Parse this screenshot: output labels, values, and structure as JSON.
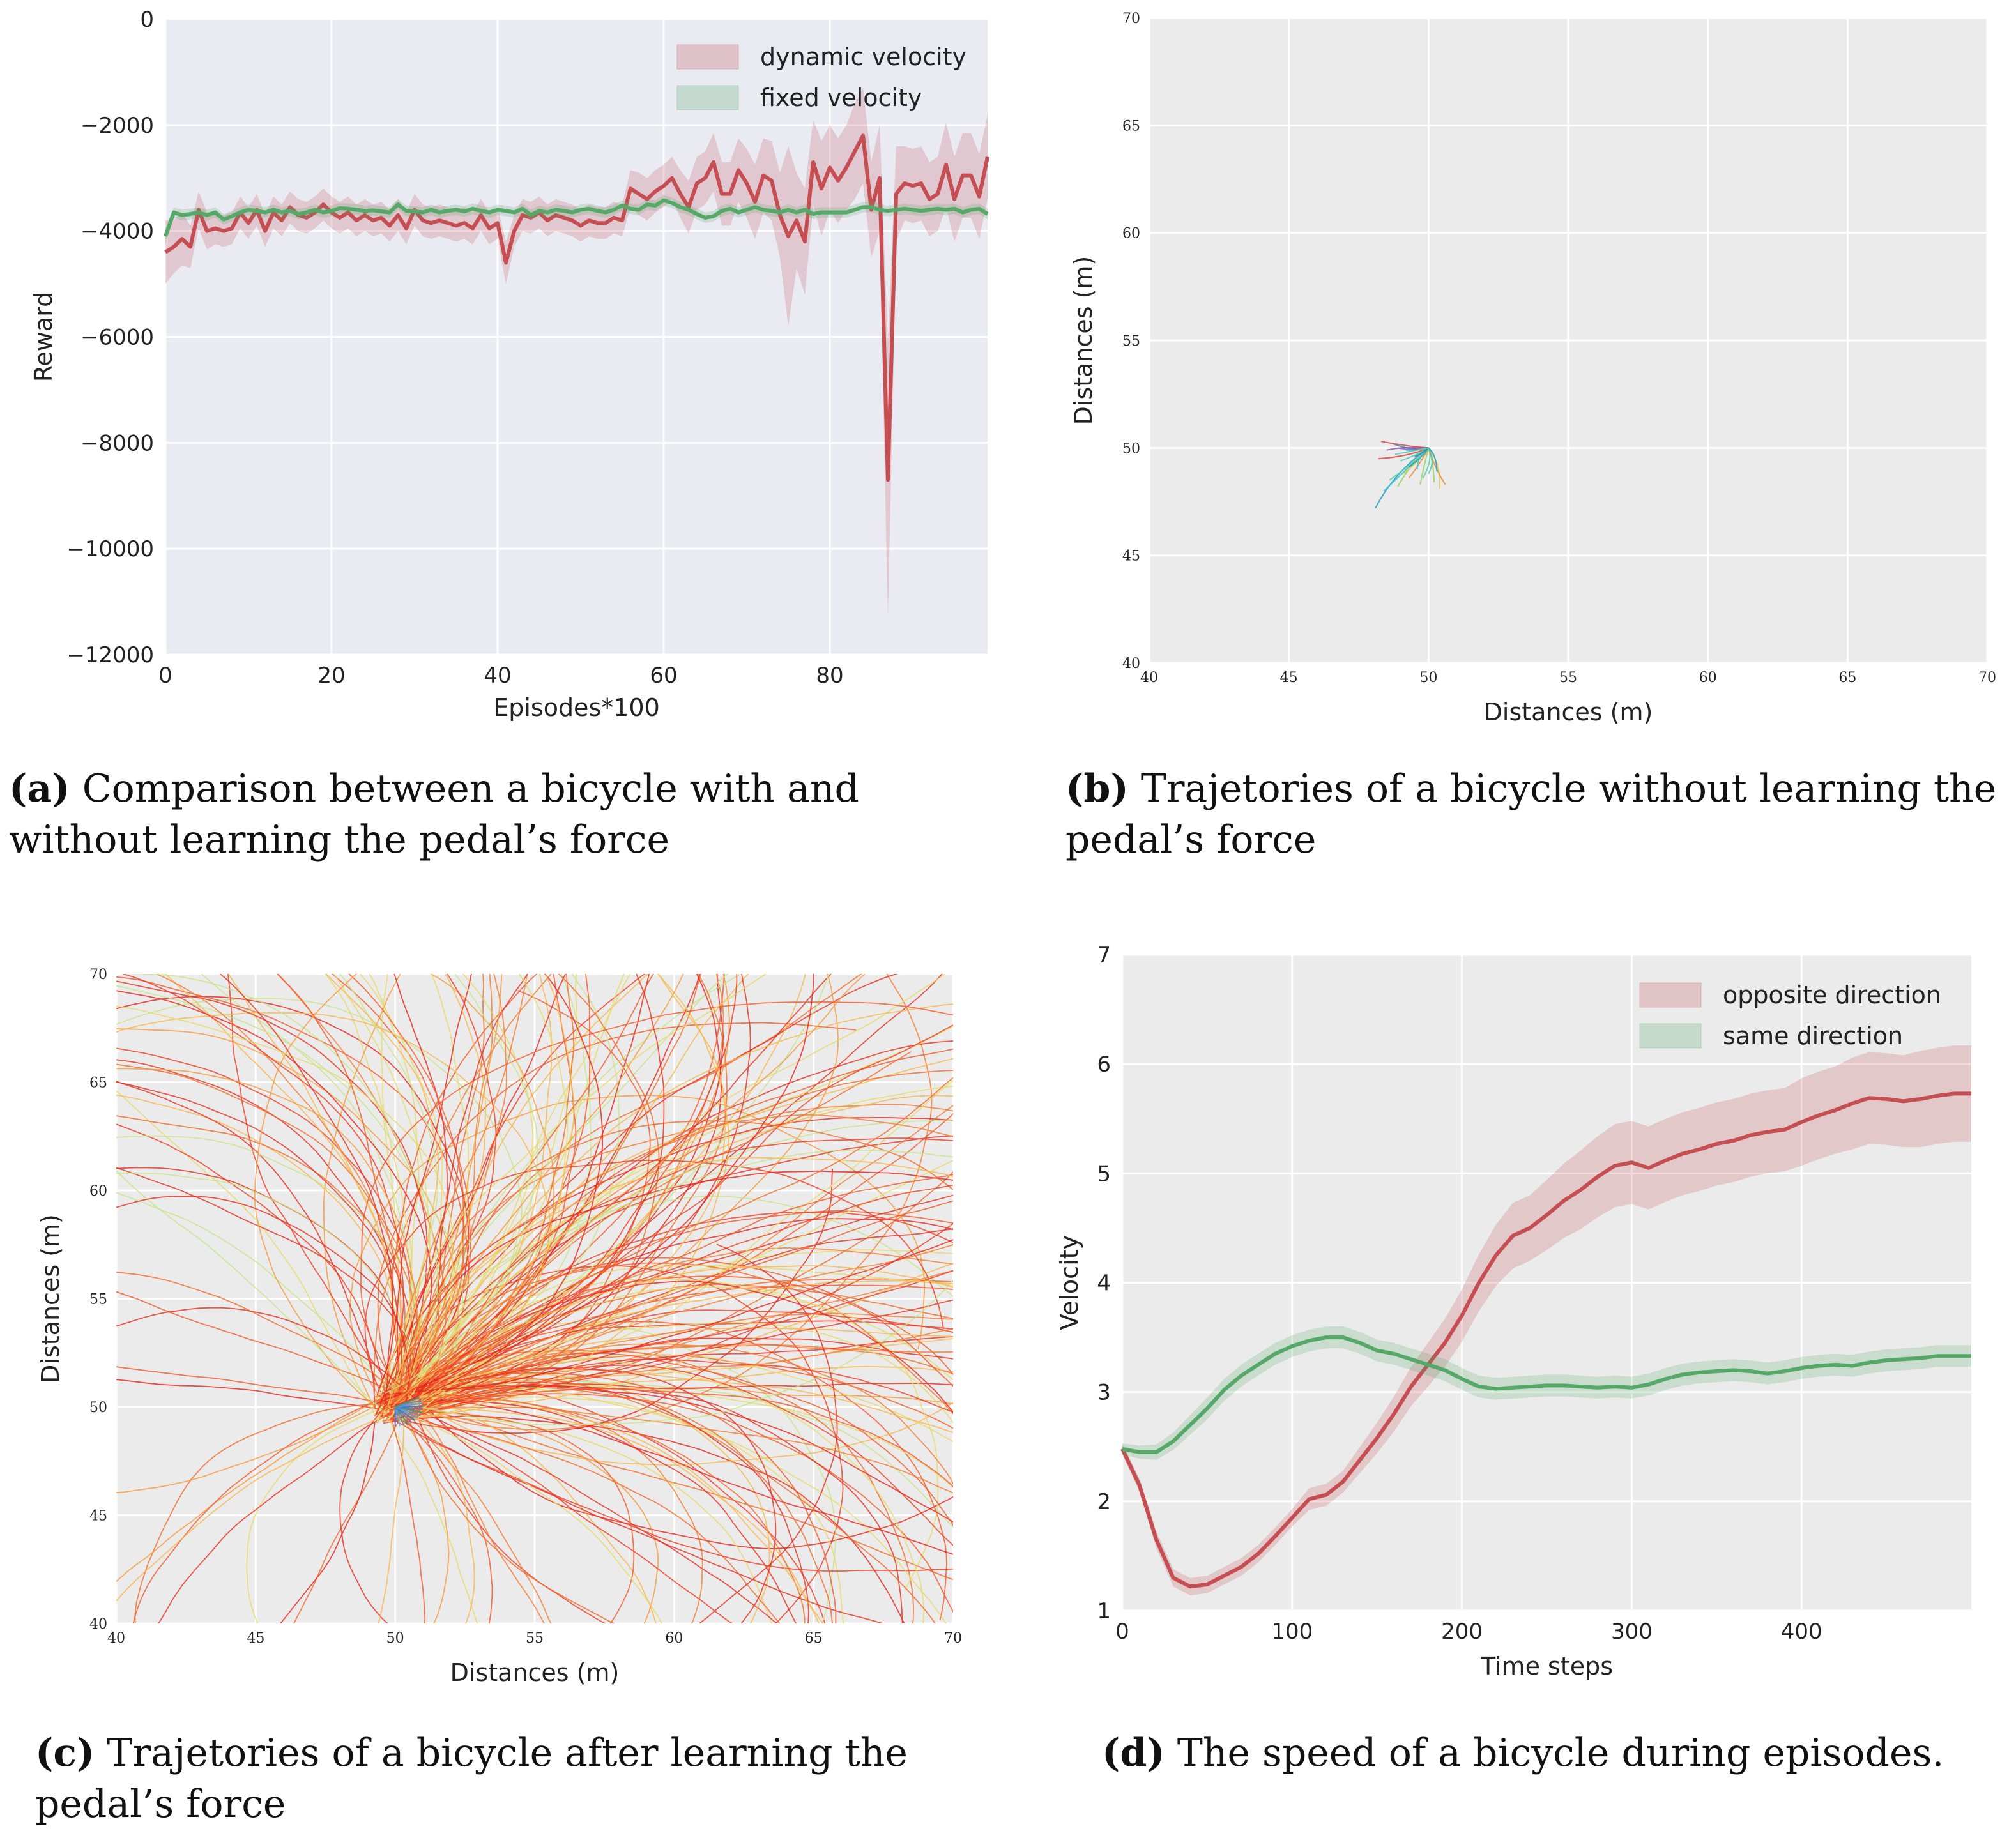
{
  "colors": {
    "red": "#c44e52",
    "green": "#55a868",
    "bg_a": "#eaeaf2",
    "bg_other": "#ebebeb",
    "grid": "#ffffff"
  },
  "captions": [
    {
      "tag": "(a)",
      "text": "Comparison between a bicycle with and without learning the pedal’s force"
    },
    {
      "tag": "(b)",
      "text": "Trajetories of a bicycle without learning the pedal’s force"
    },
    {
      "tag": "(c)",
      "text": "Trajetories of a bicycle after learning the pedal’s force"
    },
    {
      "tag": "(d)",
      "text": "The speed of a bicycle during episodes."
    }
  ],
  "chart_data": [
    {
      "id": "a",
      "type": "line",
      "title": "",
      "xlabel": "Episodes*100",
      "ylabel": "Reward",
      "xlim": [
        0,
        99
      ],
      "ylim": [
        -12000,
        0
      ],
      "xticks": [
        0,
        20,
        40,
        60,
        80
      ],
      "yticks": [
        0,
        -2000,
        -4000,
        -6000,
        -8000,
        -10000,
        -12000
      ],
      "ytick_labels": [
        "0",
        "−2000",
        "−4000",
        "−6000",
        "−8000",
        "−10000",
        "−12000"
      ],
      "legend": [
        "dynamic velocity",
        "fixed velocity"
      ],
      "legend_position": "top-right",
      "series": [
        {
          "name": "dynamic velocity",
          "color": "red",
          "values": [
            -4400,
            -4300,
            -4150,
            -4300,
            -3600,
            -4000,
            -3950,
            -4000,
            -3950,
            -3650,
            -3850,
            -3600,
            -4000,
            -3650,
            -3800,
            -3550,
            -3700,
            -3750,
            -3650,
            -3500,
            -3650,
            -3750,
            -3650,
            -3800,
            -3700,
            -3800,
            -3750,
            -3900,
            -3700,
            -3950,
            -3600,
            -3800,
            -3850,
            -3800,
            -3850,
            -3900,
            -3850,
            -3950,
            -3700,
            -3950,
            -3850,
            -4600,
            -4000,
            -3700,
            -3750,
            -3650,
            -3800,
            -3700,
            -3750,
            -3800,
            -3900,
            -3800,
            -3850,
            -3850,
            -3750,
            -3800,
            -3200,
            -3300,
            -3400,
            -3250,
            -3150,
            -3000,
            -3300,
            -3550,
            -3100,
            -3000,
            -2700,
            -3300,
            -3300,
            -2850,
            -3100,
            -3450,
            -2950,
            -3050,
            -3700,
            -4100,
            -3800,
            -4200,
            -2700,
            -3200,
            -2800,
            -3050,
            -2800,
            -2500,
            -2200,
            -3600,
            -3000,
            -8700,
            -3300,
            -3100,
            -3150,
            -3100,
            -3400,
            -3300,
            -2750,
            -3400,
            -2950,
            -2950,
            -3350,
            -2600
          ],
          "band": [
            600,
            500,
            500,
            400,
            350,
            350,
            300,
            300,
            300,
            300,
            300,
            300,
            300,
            300,
            300,
            300,
            300,
            300,
            300,
            300,
            300,
            300,
            300,
            300,
            300,
            300,
            300,
            300,
            300,
            300,
            300,
            300,
            300,
            300,
            300,
            300,
            300,
            300,
            300,
            300,
            300,
            400,
            300,
            300,
            300,
            300,
            300,
            300,
            300,
            300,
            300,
            300,
            300,
            300,
            300,
            300,
            350,
            400,
            400,
            400,
            400,
            400,
            450,
            500,
            500,
            500,
            550,
            600,
            600,
            600,
            650,
            700,
            700,
            750,
            800,
            1700,
            900,
            1000,
            800,
            900,
            800,
            800,
            800,
            900,
            900,
            900,
            1000,
            2600,
            900,
            700,
            700,
            700,
            700,
            700,
            800,
            800,
            800,
            800,
            800,
            800
          ]
        },
        {
          "name": "fixed velocity",
          "color": "green",
          "values": [
            -4100,
            -3650,
            -3700,
            -3680,
            -3650,
            -3700,
            -3650,
            -3780,
            -3720,
            -3650,
            -3600,
            -3620,
            -3650,
            -3600,
            -3650,
            -3620,
            -3680,
            -3650,
            -3600,
            -3650,
            -3620,
            -3570,
            -3580,
            -3600,
            -3620,
            -3610,
            -3630,
            -3650,
            -3500,
            -3620,
            -3630,
            -3650,
            -3600,
            -3650,
            -3620,
            -3600,
            -3630,
            -3580,
            -3620,
            -3650,
            -3600,
            -3620,
            -3650,
            -3580,
            -3700,
            -3620,
            -3650,
            -3600,
            -3620,
            -3650,
            -3600,
            -3580,
            -3620,
            -3650,
            -3600,
            -3520,
            -3580,
            -3600,
            -3500,
            -3520,
            -3420,
            -3470,
            -3550,
            -3600,
            -3680,
            -3750,
            -3720,
            -3620,
            -3580,
            -3650,
            -3600,
            -3550,
            -3600,
            -3620,
            -3650,
            -3600,
            -3650,
            -3600,
            -3680,
            -3650,
            -3650,
            -3650,
            -3650,
            -3600,
            -3550,
            -3550,
            -3600,
            -3620,
            -3600,
            -3580,
            -3600,
            -3620,
            -3600,
            -3580,
            -3600,
            -3580,
            -3650,
            -3600,
            -3580,
            -3680
          ],
          "band": [
            150,
            100,
            100,
            100,
            100,
            100,
            100,
            100,
            100,
            100,
            100,
            100,
            100,
            100,
            100,
            100,
            100,
            100,
            100,
            100,
            100,
            100,
            100,
            100,
            100,
            100,
            100,
            100,
            100,
            100,
            100,
            100,
            100,
            100,
            100,
            100,
            100,
            100,
            100,
            100,
            100,
            100,
            100,
            100,
            100,
            100,
            100,
            100,
            100,
            100,
            100,
            100,
            100,
            100,
            100,
            100,
            100,
            100,
            100,
            100,
            100,
            100,
            100,
            100,
            100,
            100,
            100,
            100,
            100,
            100,
            100,
            100,
            100,
            100,
            100,
            100,
            100,
            100,
            100,
            100,
            100,
            100,
            100,
            100,
            100,
            100,
            100,
            100,
            100,
            100,
            100,
            100,
            100,
            100,
            100,
            100,
            100,
            100,
            100,
            100
          ]
        }
      ]
    },
    {
      "id": "b",
      "type": "line",
      "title": "",
      "xlabel": "Distances (m)",
      "ylabel": "Distances (m)",
      "xlim": [
        40,
        70
      ],
      "ylim": [
        40,
        70
      ],
      "xticks": [
        40,
        45,
        50,
        55,
        60,
        65,
        70
      ],
      "yticks": [
        40,
        45,
        50,
        55,
        60,
        65,
        70
      ],
      "start_point": [
        50,
        50
      ],
      "trajectory_endpoints": [
        [
          48.1,
          47.2
        ],
        [
          48.4,
          48.0
        ],
        [
          48.6,
          48.5
        ],
        [
          48.9,
          48.2
        ],
        [
          49.1,
          48.8
        ],
        [
          49.3,
          48.6
        ],
        [
          48.2,
          49.5
        ],
        [
          48.5,
          49.9
        ],
        [
          48.7,
          50.2
        ],
        [
          49.0,
          49.4
        ],
        [
          49.3,
          49.1
        ],
        [
          49.6,
          49.0
        ],
        [
          49.8,
          48.6
        ],
        [
          50.2,
          48.4
        ],
        [
          50.4,
          48.1
        ],
        [
          50.6,
          48.3
        ],
        [
          48.3,
          50.3
        ],
        [
          48.9,
          50.0
        ],
        [
          49.5,
          49.6
        ],
        [
          50.0,
          48.8
        ],
        [
          50.3,
          48.9
        ],
        [
          49.2,
          49.9
        ],
        [
          48.8,
          49.7
        ],
        [
          49.7,
          48.3
        ]
      ]
    },
    {
      "id": "c",
      "type": "line",
      "title": "",
      "xlabel": "Distances (m)",
      "ylabel": "Distances (m)",
      "xlim": [
        40,
        70
      ],
      "ylim": [
        40,
        70
      ],
      "xticks": [
        40,
        45,
        50,
        55,
        60,
        65,
        70
      ],
      "yticks": [
        40,
        45,
        50,
        55,
        60,
        65,
        70
      ],
      "start_point": [
        50,
        50
      ],
      "trajectory_count": 260
    },
    {
      "id": "d",
      "type": "line",
      "title": "",
      "xlabel": "Time steps",
      "ylabel": "Velocity",
      "xlim": [
        0,
        500
      ],
      "ylim": [
        1,
        7
      ],
      "xticks": [
        0,
        100,
        200,
        300,
        400
      ],
      "yticks": [
        1,
        2,
        3,
        4,
        5,
        6,
        7
      ],
      "legend": [
        "opposite direction",
        "same direction"
      ],
      "legend_position": "top-right",
      "x": [
        0,
        10,
        20,
        30,
        40,
        50,
        60,
        70,
        80,
        90,
        100,
        110,
        120,
        130,
        140,
        150,
        160,
        170,
        180,
        190,
        200,
        210,
        220,
        230,
        240,
        250,
        260,
        270,
        280,
        290,
        300,
        310,
        320,
        330,
        340,
        350,
        360,
        370,
        380,
        390,
        400,
        410,
        420,
        430,
        440,
        450,
        460,
        470,
        480,
        490,
        500
      ],
      "series": [
        {
          "name": "opposite direction",
          "color": "red",
          "values": [
            2.48,
            2.15,
            1.65,
            1.3,
            1.22,
            1.24,
            1.32,
            1.4,
            1.52,
            1.68,
            1.85,
            2.02,
            2.06,
            2.18,
            2.38,
            2.58,
            2.8,
            3.05,
            3.25,
            3.45,
            3.7,
            4.0,
            4.25,
            4.43,
            4.5,
            4.62,
            4.75,
            4.85,
            4.97,
            5.07,
            5.1,
            5.05,
            5.12,
            5.18,
            5.22,
            5.27,
            5.3,
            5.35,
            5.38,
            5.4,
            5.47,
            5.53,
            5.58,
            5.64,
            5.69,
            5.68,
            5.66,
            5.68,
            5.71,
            5.73,
            5.73
          ],
          "band": [
            0.05,
            0.06,
            0.08,
            0.08,
            0.08,
            0.08,
            0.08,
            0.08,
            0.08,
            0.08,
            0.08,
            0.1,
            0.1,
            0.1,
            0.12,
            0.14,
            0.16,
            0.18,
            0.2,
            0.22,
            0.24,
            0.26,
            0.28,
            0.3,
            0.3,
            0.32,
            0.34,
            0.36,
            0.37,
            0.38,
            0.38,
            0.38,
            0.38,
            0.38,
            0.38,
            0.38,
            0.38,
            0.38,
            0.38,
            0.38,
            0.4,
            0.4,
            0.4,
            0.42,
            0.42,
            0.42,
            0.42,
            0.44,
            0.44,
            0.44,
            0.44
          ]
        },
        {
          "name": "same direction",
          "color": "green",
          "values": [
            2.48,
            2.45,
            2.45,
            2.55,
            2.7,
            2.85,
            3.02,
            3.15,
            3.25,
            3.35,
            3.42,
            3.47,
            3.5,
            3.5,
            3.45,
            3.38,
            3.35,
            3.3,
            3.25,
            3.2,
            3.12,
            3.05,
            3.03,
            3.04,
            3.05,
            3.06,
            3.06,
            3.05,
            3.04,
            3.05,
            3.04,
            3.07,
            3.12,
            3.16,
            3.18,
            3.19,
            3.2,
            3.19,
            3.17,
            3.19,
            3.22,
            3.24,
            3.25,
            3.24,
            3.27,
            3.29,
            3.3,
            3.31,
            3.33,
            3.33,
            3.33
          ],
          "band": [
            0.05,
            0.06,
            0.07,
            0.08,
            0.09,
            0.1,
            0.1,
            0.1,
            0.1,
            0.1,
            0.1,
            0.1,
            0.1,
            0.1,
            0.1,
            0.1,
            0.1,
            0.1,
            0.1,
            0.1,
            0.1,
            0.1,
            0.1,
            0.1,
            0.1,
            0.1,
            0.1,
            0.1,
            0.1,
            0.1,
            0.1,
            0.1,
            0.1,
            0.1,
            0.1,
            0.1,
            0.1,
            0.1,
            0.1,
            0.1,
            0.1,
            0.1,
            0.1,
            0.1,
            0.1,
            0.1,
            0.1,
            0.1,
            0.1,
            0.1,
            0.1
          ]
        }
      ]
    }
  ]
}
